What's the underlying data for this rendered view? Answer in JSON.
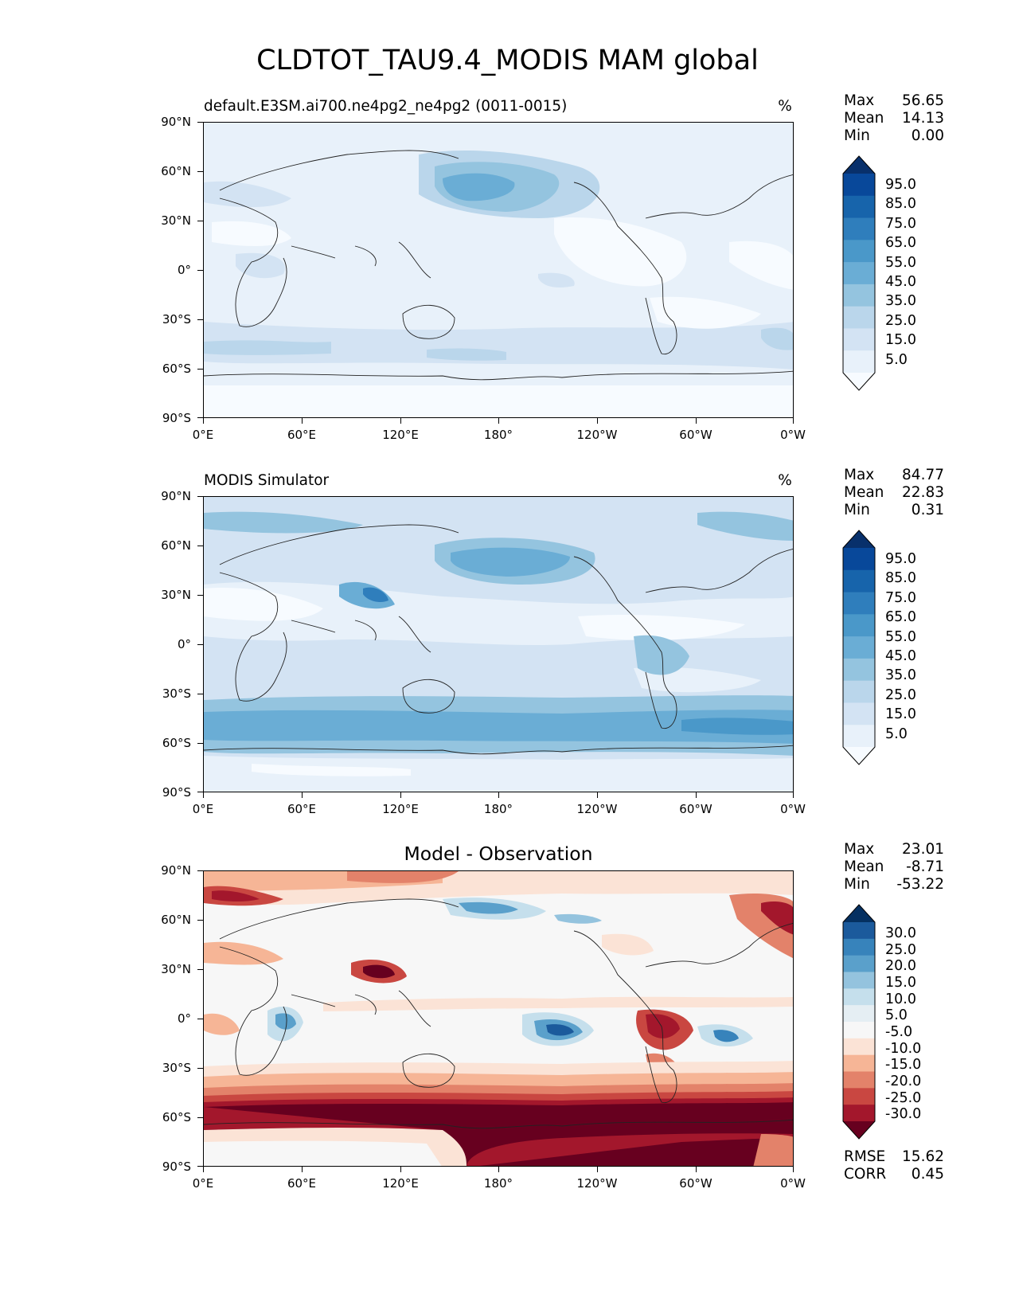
{
  "title": "CLDTOT_TAU9.4_MODIS MAM global",
  "lat_labels": [
    "90°N",
    "60°N",
    "30°N",
    "0°",
    "30°S",
    "60°S",
    "90°S"
  ],
  "lon_labels": [
    "0°E",
    "60°E",
    "120°E",
    "180°",
    "120°W",
    "60°W",
    "0°W"
  ],
  "stat_names": [
    "Max",
    "Mean",
    "Min"
  ],
  "panels": [
    {
      "title_left": "default.E3SM.ai700.ne4pg2_ne4pg2 (0011-0015)",
      "units": "%",
      "stats": [
        "56.65",
        "14.13",
        "0.00"
      ],
      "colorbar": {
        "labels": [
          "95.0",
          "85.0",
          "75.0",
          "65.0",
          "55.0",
          "45.0",
          "35.0",
          "25.0",
          "15.0",
          "5.0"
        ],
        "colors": [
          "#08306b",
          "#08489a",
          "#1764ab",
          "#2f7ebc",
          "#4a98c9",
          "#6aadd5",
          "#94c4df",
          "#bad6eb",
          "#d3e3f3",
          "#e8f1fa",
          "#f7fbff"
        ]
      }
    },
    {
      "title_left": "MODIS Simulator",
      "units": "%",
      "stats": [
        "84.77",
        "22.83",
        "0.31"
      ],
      "colorbar": {
        "labels": [
          "95.0",
          "85.0",
          "75.0",
          "65.0",
          "55.0",
          "45.0",
          "35.0",
          "25.0",
          "15.0",
          "5.0"
        ],
        "colors": [
          "#08306b",
          "#08489a",
          "#1764ab",
          "#2f7ebc",
          "#4a98c9",
          "#6aadd5",
          "#94c4df",
          "#bad6eb",
          "#d3e3f3",
          "#e8f1fa",
          "#f7fbff"
        ]
      }
    },
    {
      "title_center": "Model - Observation",
      "stats": [
        "23.01",
        "-8.71",
        "-53.22"
      ],
      "colorbar": {
        "labels": [
          "30.0",
          "25.0",
          "20.0",
          "15.0",
          "10.0",
          "5.0",
          "-5.0",
          "-10.0",
          "-15.0",
          "-20.0",
          "-25.0",
          "-30.0"
        ],
        "colors": [
          "#053061",
          "#1b5a9c",
          "#3783bb",
          "#5aa0cb",
          "#94c3de",
          "#c5dfec",
          "#e5eef3",
          "#f7f7f7",
          "#fbe3d6",
          "#f6b596",
          "#e3826a",
          "#c94741",
          "#a3172c",
          "#67001f"
        ]
      },
      "error_names": [
        "RMSE",
        "CORR"
      ],
      "error_values": [
        "15.62",
        "0.45"
      ]
    }
  ]
}
